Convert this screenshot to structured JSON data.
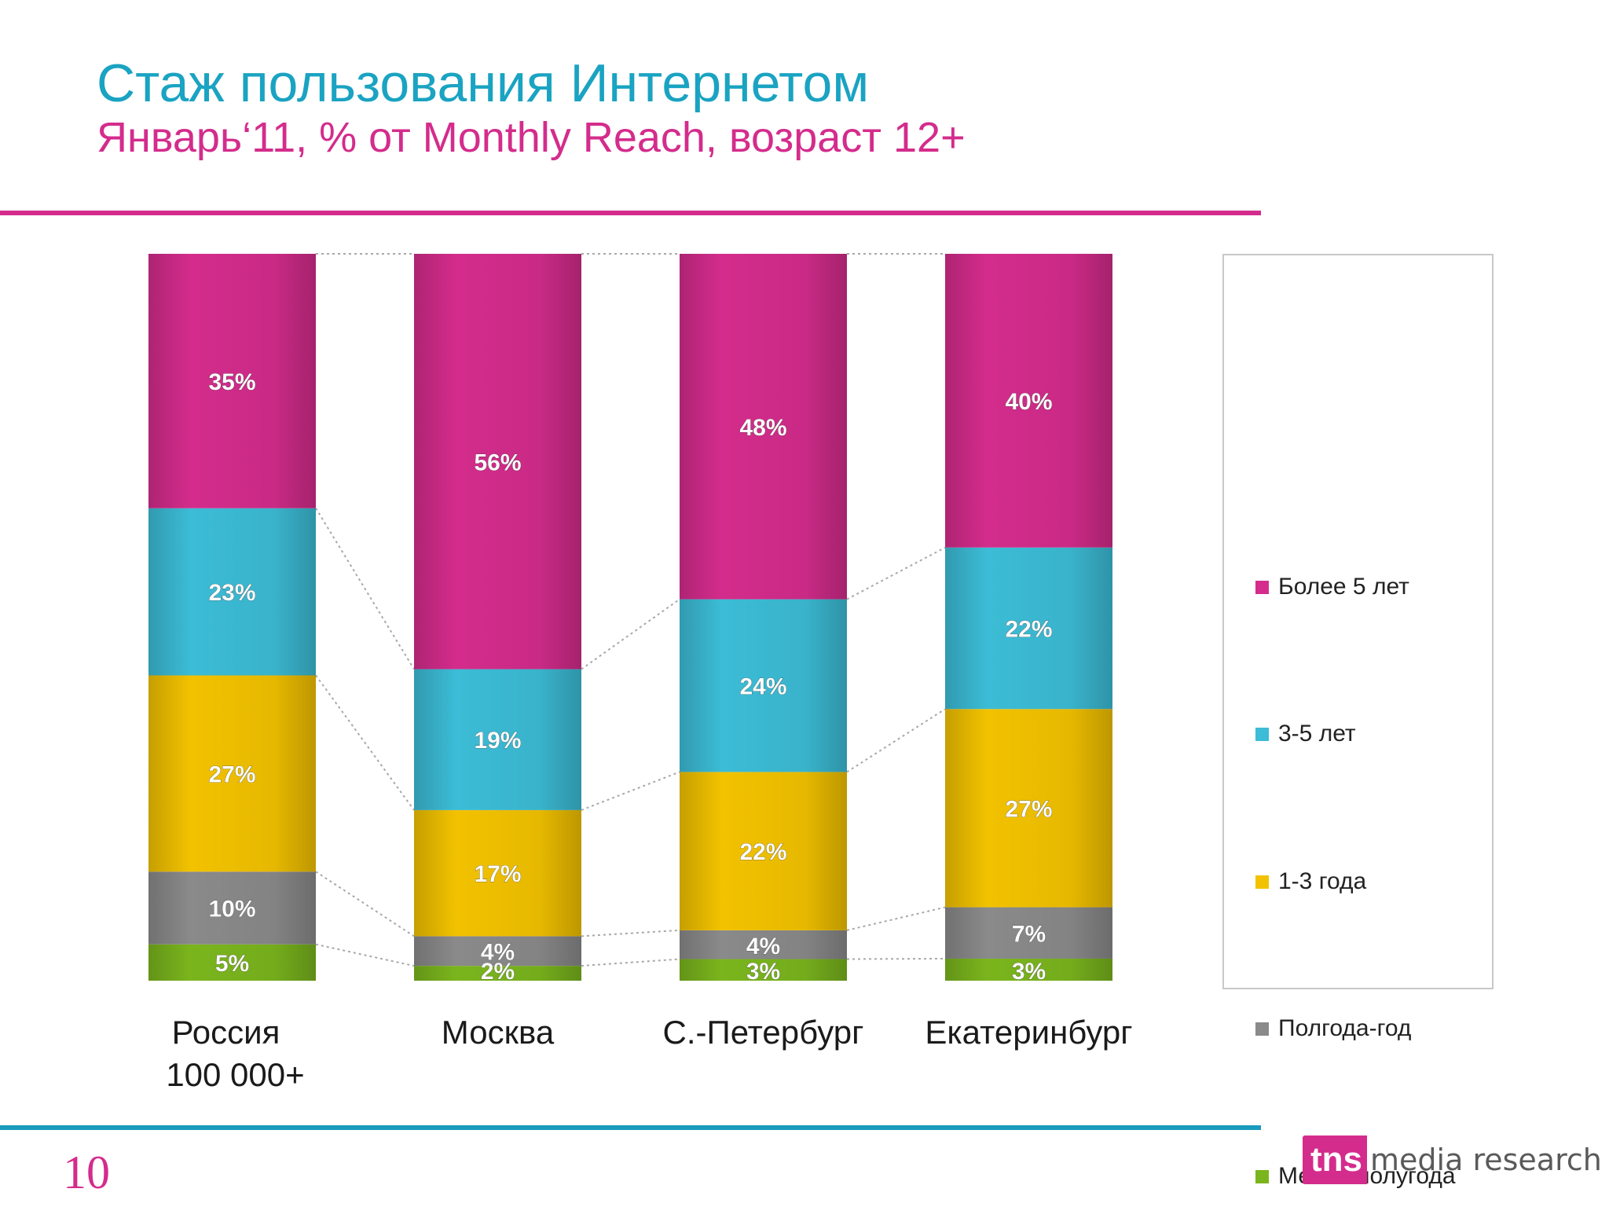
{
  "slide": {
    "title": "Стаж пользования Интернетом",
    "subtitle": "Январь‘11, % от Monthly Reach, возраст 12+",
    "page_number": "10",
    "logo": {
      "mark": "tns",
      "text": "media research"
    },
    "colors": {
      "title": "#1aa3c2",
      "subtitle": "#d42c8c",
      "rule_top": "#d42c8c",
      "rule_bottom": "#1a9bbd"
    }
  },
  "chart_data": {
    "type": "bar",
    "stacked": true,
    "percent_stacked": true,
    "categories": [
      {
        "lines": [
          "Россия",
          "100 000+"
        ]
      },
      {
        "lines": [
          "Москва"
        ]
      },
      {
        "lines": [
          "С.-Петербург"
        ]
      },
      {
        "lines": [
          "Екатеринбург"
        ]
      }
    ],
    "series": [
      {
        "name": "Менее полугода",
        "color": "#7ab51d",
        "values": [
          5,
          2,
          3,
          3
        ],
        "labels": [
          "5%",
          "2%",
          "3%",
          "3%"
        ]
      },
      {
        "name": "Полгода-год",
        "color": "#8a8a8a",
        "values": [
          10,
          4,
          4,
          7
        ],
        "labels": [
          "10%",
          "4%",
          "4%",
          "7%"
        ]
      },
      {
        "name": "1-3 года",
        "color": "#f2c200",
        "values": [
          27,
          17,
          22,
          27
        ],
        "labels": [
          "27%",
          "17%",
          "22%",
          "27%"
        ]
      },
      {
        "name": "3-5 лет",
        "color": "#3cbcd6",
        "values": [
          23,
          19,
          24,
          22
        ],
        "labels": [
          "23%",
          "19%",
          "24%",
          "22%"
        ]
      },
      {
        "name": "Более 5 лет",
        "color": "#d42c8c",
        "values": [
          35,
          56,
          48,
          40
        ],
        "labels": [
          "35%",
          "56%",
          "48%",
          "40%"
        ]
      }
    ],
    "legend": {
      "position": "right",
      "items": [
        {
          "label": "Более 5 лет",
          "color": "#d42c8c"
        },
        {
          "label": "3-5 лет",
          "color": "#3cbcd6"
        },
        {
          "label": "1-3 года",
          "color": "#f2c200"
        },
        {
          "label": "Полгода-год",
          "color": "#8a8a8a"
        },
        {
          "label": "Менее полугода",
          "color": "#7ab51d"
        }
      ]
    },
    "series_lines": "dotted",
    "grid": false
  }
}
